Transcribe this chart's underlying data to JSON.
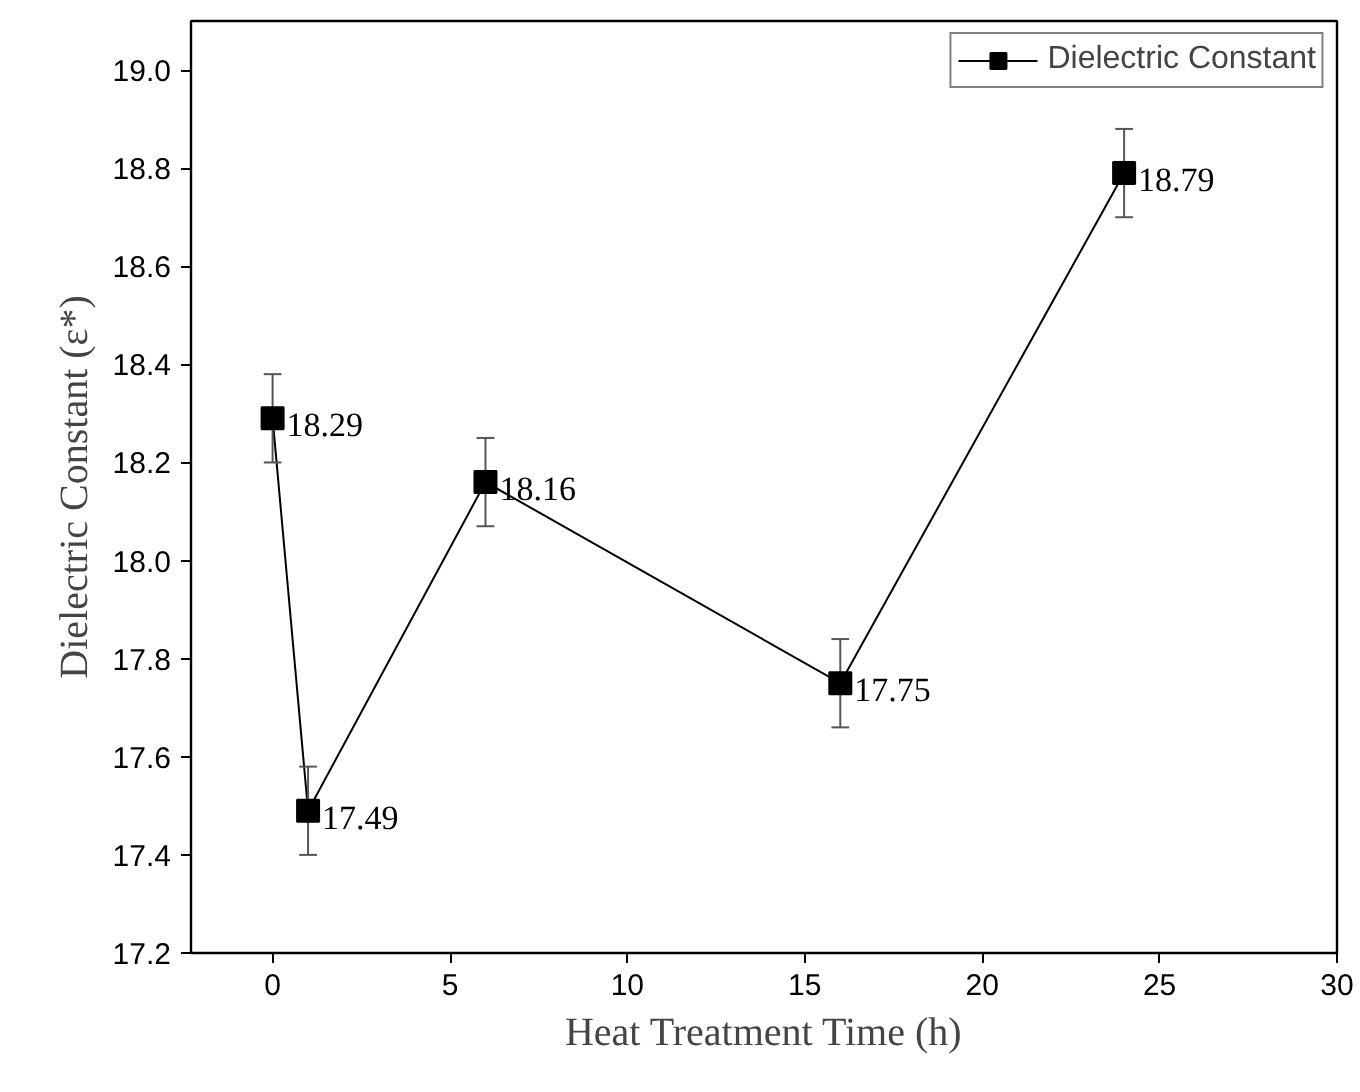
{
  "chart_data": {
    "type": "line",
    "xlabel": "Heat Treatment Time (h)",
    "ylabel": "Dielectric Constant (ε*)",
    "x": [
      0,
      1,
      6,
      16,
      24
    ],
    "series": [
      {
        "name": "Dielectric Constant",
        "color": "#000000",
        "values": [
          18.29,
          17.49,
          18.16,
          17.75,
          18.79
        ],
        "errors": [
          0.09,
          0.09,
          0.09,
          0.09,
          0.09
        ]
      }
    ],
    "xlim": [
      -2.3,
      30
    ],
    "xticks": [
      0,
      5,
      10,
      15,
      20,
      25,
      30
    ],
    "ylim": [
      17.2,
      19.1
    ],
    "yticks": [
      {
        "value": 17.2,
        "label": "17.2"
      },
      {
        "value": 17.4,
        "label": "17.4"
      },
      {
        "value": 17.6,
        "label": "17.6"
      },
      {
        "value": 17.8,
        "label": "17.8"
      },
      {
        "value": 18.0,
        "label": "18.0"
      },
      {
        "value": 18.2,
        "label": "18.2"
      },
      {
        "value": 18.4,
        "label": "18.4"
      },
      {
        "value": 18.6,
        "label": "18.6"
      },
      {
        "value": 18.8,
        "label": "18.8"
      },
      {
        "value": 19.0,
        "label": "19.0"
      }
    ],
    "data_labels": true,
    "legend": "top right",
    "marker": "square",
    "line_style": "solid",
    "grid": false
  }
}
